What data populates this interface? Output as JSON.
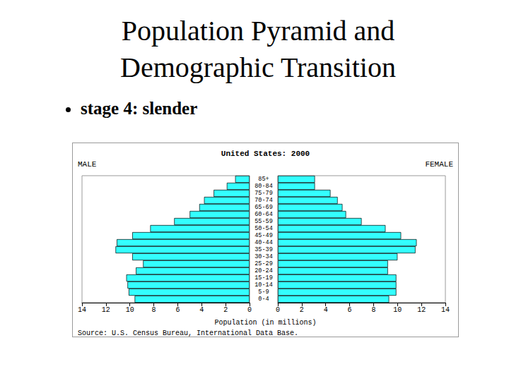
{
  "slide": {
    "title": "Population Pyramid and\nDemographic Transition",
    "bullet": "stage 4: slender"
  },
  "chart_data": {
    "type": "bar",
    "title": "United States: 2000",
    "orientation": "horizontal",
    "xlabel": "Population (in millions)",
    "source": "Source: U.S. Census Bureau, International Data Base.",
    "categories": [
      "0-4",
      "5-9",
      "10-14",
      "15-19",
      "20-24",
      "25-29",
      "30-34",
      "35-39",
      "40-44",
      "45-49",
      "50-54",
      "55-59",
      "60-64",
      "65-69",
      "70-74",
      "75-79",
      "80-84",
      "85+"
    ],
    "series": [
      {
        "name": "MALE",
        "color": "#33ffff",
        "values": [
          9.6,
          10.1,
          10.2,
          10.3,
          9.5,
          8.9,
          9.8,
          11.2,
          11.1,
          9.8,
          8.3,
          6.3,
          5.0,
          4.2,
          3.8,
          3.0,
          1.9,
          1.2
        ]
      },
      {
        "name": "FEMALE",
        "color": "#33ffff",
        "values": [
          9.3,
          9.9,
          9.9,
          9.9,
          9.2,
          9.2,
          10.0,
          11.5,
          11.6,
          10.3,
          9.0,
          7.0,
          5.7,
          5.4,
          5.0,
          4.4,
          3.1,
          3.1
        ]
      }
    ],
    "xlim": [
      0,
      14
    ],
    "xticks": [
      0,
      2,
      4,
      6,
      8,
      10,
      12,
      14
    ],
    "grid": false
  }
}
